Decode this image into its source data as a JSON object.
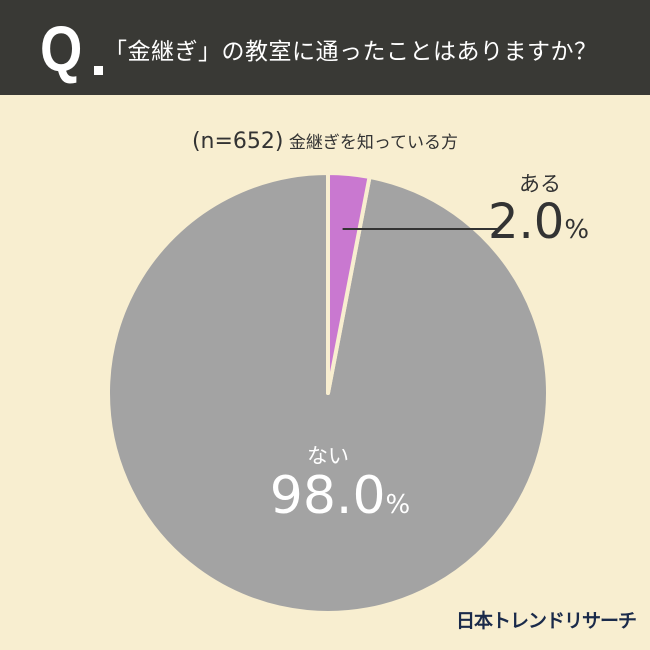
{
  "header": {
    "q_mark": "Q",
    "title": "「金継ぎ」の教室に通ったことはありますか？"
  },
  "subtitle": {
    "n": "(n=652)",
    "text": "金継ぎを知っている方"
  },
  "chart_data": {
    "type": "pie",
    "categories": [
      "ある",
      "ない"
    ],
    "values": [
      2.0,
      98.0
    ],
    "colors": [
      "#c978d0",
      "#a3a3a3"
    ],
    "data_labels": [
      "2.0",
      "98.0"
    ],
    "unit": "%",
    "start": "top",
    "direction": "clockwise"
  },
  "logo": "日本トレンドリサーチ"
}
